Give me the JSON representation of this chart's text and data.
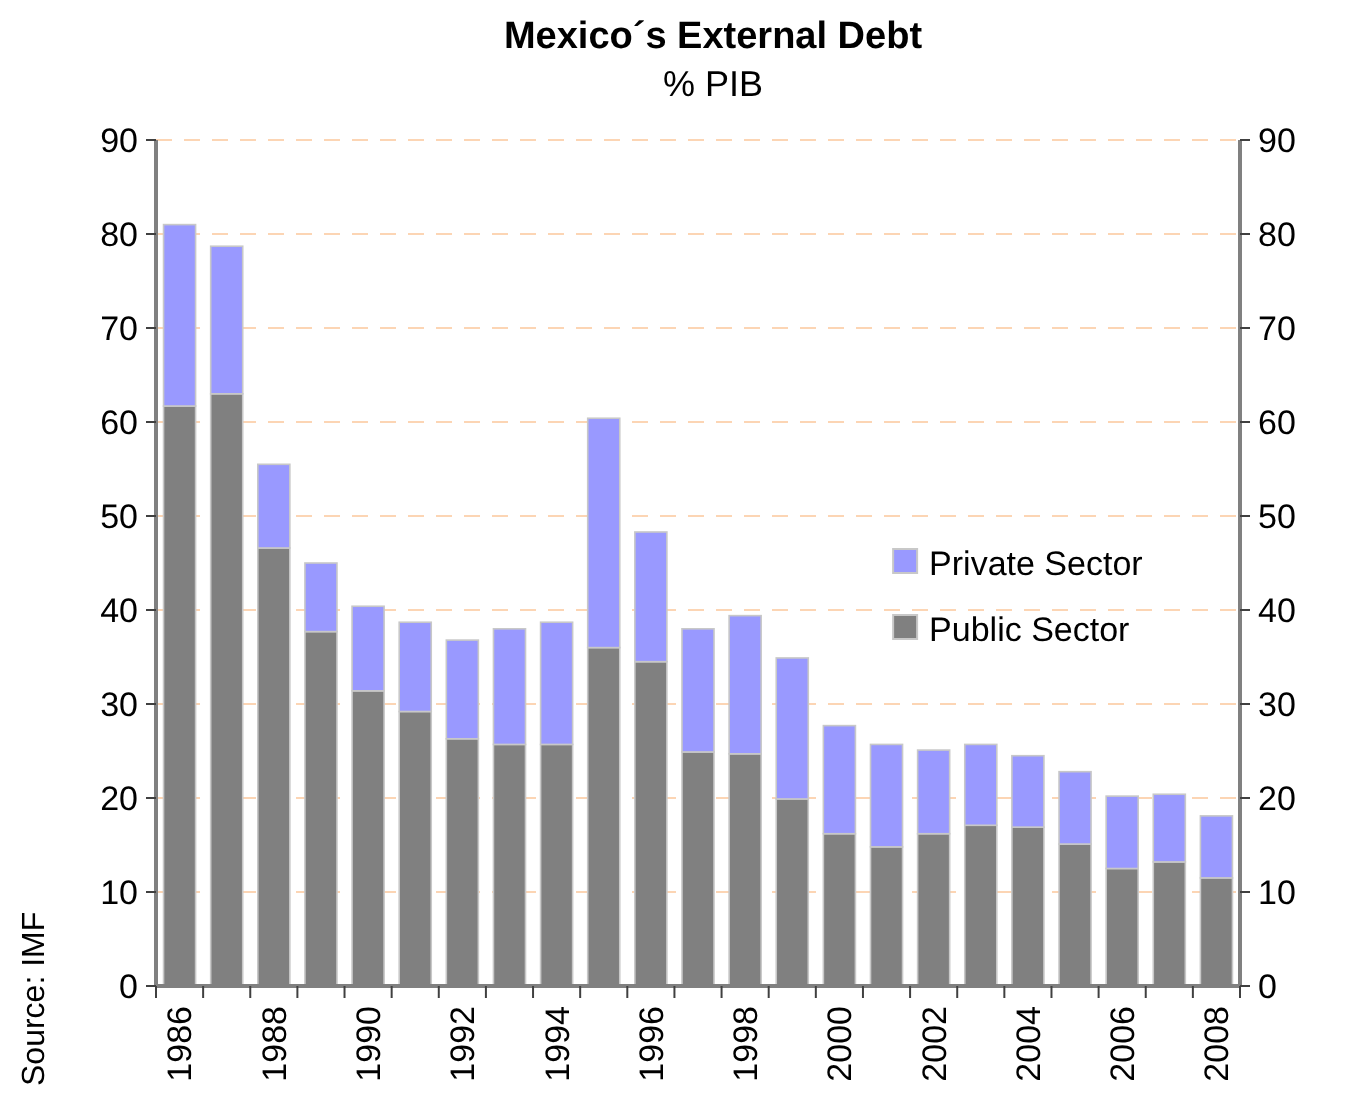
{
  "chart_data": {
    "type": "bar",
    "title": "Mexico´s External Debt",
    "subtitle": "% PIB",
    "stacked": true,
    "categories": [
      "1986",
      null,
      "1988",
      null,
      "1990",
      null,
      "1992",
      null,
      "1994",
      null,
      "1996",
      null,
      "1998",
      null,
      "2000",
      null,
      "2002",
      null,
      "2004",
      null,
      "2006",
      null,
      "2008"
    ],
    "series": [
      {
        "name": "Public Sector",
        "color": "#808080",
        "values": [
          61.7,
          63,
          46.6,
          37.7,
          31.4,
          29.2,
          26.3,
          25.7,
          25.7,
          36,
          34.5,
          24.9,
          24.7,
          19.9,
          16.2,
          14.8,
          16.2,
          17.1,
          16.9,
          15.1,
          12.5,
          13.2,
          11.5
        ]
      },
      {
        "name": "Private Sector",
        "color": "#9999ff",
        "values": [
          19.3,
          15.7,
          8.9,
          7.3,
          9.0,
          9.5,
          10.5,
          12.3,
          13.0,
          24.4,
          13.8,
          13.1,
          14.7,
          15.0,
          11.5,
          10.9,
          8.9,
          8.6,
          7.6,
          7.7,
          7.7,
          7.2,
          6.6
        ]
      }
    ],
    "ylim": [
      0,
      90
    ],
    "yticks": [
      0,
      10,
      20,
      30,
      40,
      50,
      60,
      70,
      80,
      90
    ],
    "y2lim": [
      0,
      90
    ],
    "y2ticks": [
      0,
      10,
      20,
      30,
      40,
      50,
      60,
      70,
      80,
      90
    ],
    "grid": "y",
    "legend": "right",
    "annotations": [
      "Source: IMF"
    ]
  }
}
